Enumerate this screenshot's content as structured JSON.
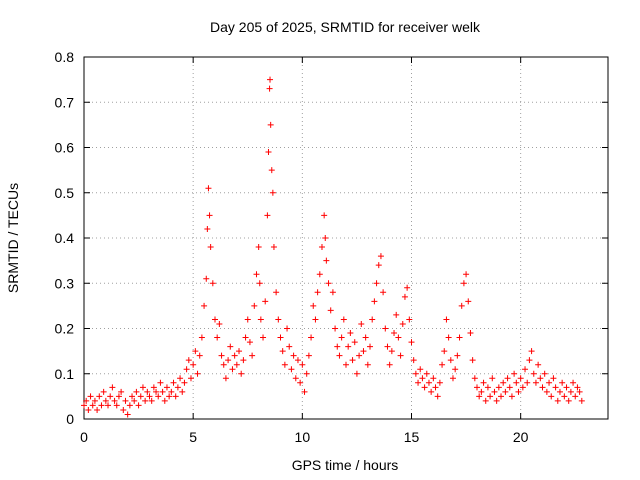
{
  "chart_data": {
    "type": "scatter",
    "title": "Day 205 of 2025, SRMTID for receiver welk",
    "xlabel": "GPS time / hours",
    "ylabel": "SRMTID / TECUs",
    "xlim": [
      0,
      24
    ],
    "ylim": [
      0,
      0.8
    ],
    "xticks": [
      0,
      5,
      10,
      15,
      20
    ],
    "xtick_labels": [
      "0",
      "5",
      "10",
      "15",
      "20"
    ],
    "yticks": [
      0,
      0.1,
      0.2,
      0.3,
      0.4,
      0.5,
      0.6,
      0.7,
      0.8
    ],
    "ytick_labels": [
      "0",
      "0.1",
      "0.2",
      "0.3",
      "0.4",
      "0.5",
      "0.6",
      "0.7",
      "0.8"
    ],
    "grid": true,
    "marker": "+",
    "color": "#ff0000",
    "series": [
      {
        "name": "SRMTID",
        "points": [
          [
            0.0,
            0.03
          ],
          [
            0.1,
            0.04
          ],
          [
            0.2,
            0.02
          ],
          [
            0.3,
            0.05
          ],
          [
            0.4,
            0.03
          ],
          [
            0.5,
            0.04
          ],
          [
            0.6,
            0.02
          ],
          [
            0.7,
            0.05
          ],
          [
            0.8,
            0.03
          ],
          [
            0.9,
            0.06
          ],
          [
            1.0,
            0.04
          ],
          [
            1.1,
            0.03
          ],
          [
            1.2,
            0.05
          ],
          [
            1.3,
            0.07
          ],
          [
            1.4,
            0.04
          ],
          [
            1.5,
            0.03
          ],
          [
            1.6,
            0.05
          ],
          [
            1.7,
            0.06
          ],
          [
            1.8,
            0.02
          ],
          [
            1.9,
            0.04
          ],
          [
            2.0,
            0.01
          ],
          [
            2.1,
            0.03
          ],
          [
            2.2,
            0.05
          ],
          [
            2.3,
            0.04
          ],
          [
            2.4,
            0.06
          ],
          [
            2.5,
            0.03
          ],
          [
            2.6,
            0.05
          ],
          [
            2.7,
            0.07
          ],
          [
            2.8,
            0.04
          ],
          [
            2.9,
            0.06
          ],
          [
            3.0,
            0.05
          ],
          [
            3.1,
            0.04
          ],
          [
            3.2,
            0.07
          ],
          [
            3.3,
            0.06
          ],
          [
            3.4,
            0.05
          ],
          [
            3.5,
            0.08
          ],
          [
            3.6,
            0.06
          ],
          [
            3.7,
            0.04
          ],
          [
            3.8,
            0.07
          ],
          [
            3.9,
            0.05
          ],
          [
            4.0,
            0.06
          ],
          [
            4.1,
            0.08
          ],
          [
            4.2,
            0.05
          ],
          [
            4.3,
            0.07
          ],
          [
            4.4,
            0.09
          ],
          [
            4.5,
            0.06
          ],
          [
            4.6,
            0.08
          ],
          [
            4.7,
            0.11
          ],
          [
            4.8,
            0.13
          ],
          [
            4.9,
            0.09
          ],
          [
            5.0,
            0.12
          ],
          [
            5.1,
            0.15
          ],
          [
            5.2,
            0.1
          ],
          [
            5.3,
            0.14
          ],
          [
            5.4,
            0.18
          ],
          [
            5.5,
            0.25
          ],
          [
            5.6,
            0.31
          ],
          [
            5.65,
            0.42
          ],
          [
            5.7,
            0.51
          ],
          [
            5.75,
            0.45
          ],
          [
            5.8,
            0.38
          ],
          [
            5.9,
            0.3
          ],
          [
            6.0,
            0.22
          ],
          [
            6.1,
            0.18
          ],
          [
            6.2,
            0.21
          ],
          [
            6.3,
            0.14
          ],
          [
            6.4,
            0.12
          ],
          [
            6.5,
            0.09
          ],
          [
            6.6,
            0.13
          ],
          [
            6.7,
            0.16
          ],
          [
            6.8,
            0.11
          ],
          [
            6.9,
            0.14
          ],
          [
            7.0,
            0.12
          ],
          [
            7.1,
            0.15
          ],
          [
            7.2,
            0.1
          ],
          [
            7.3,
            0.13
          ],
          [
            7.4,
            0.18
          ],
          [
            7.5,
            0.22
          ],
          [
            7.6,
            0.17
          ],
          [
            7.7,
            0.14
          ],
          [
            7.8,
            0.25
          ],
          [
            7.9,
            0.32
          ],
          [
            8.0,
            0.38
          ],
          [
            8.05,
            0.3
          ],
          [
            8.1,
            0.22
          ],
          [
            8.2,
            0.18
          ],
          [
            8.3,
            0.26
          ],
          [
            8.4,
            0.45
          ],
          [
            8.45,
            0.59
          ],
          [
            8.5,
            0.73
          ],
          [
            8.52,
            0.75
          ],
          [
            8.55,
            0.65
          ],
          [
            8.6,
            0.55
          ],
          [
            8.65,
            0.5
          ],
          [
            8.7,
            0.38
          ],
          [
            8.8,
            0.28
          ],
          [
            8.9,
            0.22
          ],
          [
            9.0,
            0.18
          ],
          [
            9.1,
            0.15
          ],
          [
            9.2,
            0.12
          ],
          [
            9.3,
            0.2
          ],
          [
            9.4,
            0.16
          ],
          [
            9.5,
            0.11
          ],
          [
            9.6,
            0.14
          ],
          [
            9.7,
            0.09
          ],
          [
            9.8,
            0.13
          ],
          [
            9.9,
            0.08
          ],
          [
            10.0,
            0.12
          ],
          [
            10.1,
            0.06
          ],
          [
            10.2,
            0.1
          ],
          [
            10.3,
            0.14
          ],
          [
            10.4,
            0.18
          ],
          [
            10.5,
            0.25
          ],
          [
            10.6,
            0.22
          ],
          [
            10.7,
            0.28
          ],
          [
            10.8,
            0.32
          ],
          [
            10.9,
            0.38
          ],
          [
            11.0,
            0.45
          ],
          [
            11.05,
            0.4
          ],
          [
            11.1,
            0.35
          ],
          [
            11.2,
            0.3
          ],
          [
            11.3,
            0.24
          ],
          [
            11.4,
            0.28
          ],
          [
            11.5,
            0.2
          ],
          [
            11.6,
            0.16
          ],
          [
            11.7,
            0.14
          ],
          [
            11.8,
            0.18
          ],
          [
            11.9,
            0.22
          ],
          [
            12.0,
            0.12
          ],
          [
            12.1,
            0.16
          ],
          [
            12.2,
            0.19
          ],
          [
            12.3,
            0.13
          ],
          [
            12.4,
            0.17
          ],
          [
            12.5,
            0.1
          ],
          [
            12.6,
            0.14
          ],
          [
            12.7,
            0.21
          ],
          [
            12.8,
            0.15
          ],
          [
            12.9,
            0.18
          ],
          [
            13.0,
            0.12
          ],
          [
            13.1,
            0.16
          ],
          [
            13.2,
            0.22
          ],
          [
            13.3,
            0.26
          ],
          [
            13.4,
            0.3
          ],
          [
            13.5,
            0.34
          ],
          [
            13.6,
            0.36
          ],
          [
            13.7,
            0.28
          ],
          [
            13.8,
            0.2
          ],
          [
            13.9,
            0.16
          ],
          [
            14.0,
            0.12
          ],
          [
            14.1,
            0.15
          ],
          [
            14.2,
            0.19
          ],
          [
            14.3,
            0.23
          ],
          [
            14.4,
            0.18
          ],
          [
            14.5,
            0.14
          ],
          [
            14.6,
            0.21
          ],
          [
            14.7,
            0.27
          ],
          [
            14.8,
            0.29
          ],
          [
            14.9,
            0.22
          ],
          [
            15.0,
            0.17
          ],
          [
            15.1,
            0.13
          ],
          [
            15.2,
            0.1
          ],
          [
            15.3,
            0.08
          ],
          [
            15.4,
            0.11
          ],
          [
            15.5,
            0.09
          ],
          [
            15.6,
            0.07
          ],
          [
            15.7,
            0.1
          ],
          [
            15.8,
            0.08
          ],
          [
            15.9,
            0.06
          ],
          [
            16.0,
            0.09
          ],
          [
            16.1,
            0.07
          ],
          [
            16.2,
            0.05
          ],
          [
            16.3,
            0.08
          ],
          [
            16.4,
            0.12
          ],
          [
            16.5,
            0.15
          ],
          [
            16.6,
            0.22
          ],
          [
            16.7,
            0.18
          ],
          [
            16.8,
            0.13
          ],
          [
            16.9,
            0.09
          ],
          [
            17.0,
            0.11
          ],
          [
            17.1,
            0.14
          ],
          [
            17.2,
            0.18
          ],
          [
            17.3,
            0.25
          ],
          [
            17.4,
            0.3
          ],
          [
            17.5,
            0.32
          ],
          [
            17.6,
            0.26
          ],
          [
            17.7,
            0.19
          ],
          [
            17.8,
            0.13
          ],
          [
            17.9,
            0.09
          ],
          [
            18.0,
            0.07
          ],
          [
            18.1,
            0.05
          ],
          [
            18.2,
            0.06
          ],
          [
            18.3,
            0.08
          ],
          [
            18.4,
            0.04
          ],
          [
            18.5,
            0.07
          ],
          [
            18.6,
            0.05
          ],
          [
            18.7,
            0.09
          ],
          [
            18.8,
            0.06
          ],
          [
            18.9,
            0.04
          ],
          [
            19.0,
            0.07
          ],
          [
            19.1,
            0.05
          ],
          [
            19.2,
            0.08
          ],
          [
            19.3,
            0.06
          ],
          [
            19.4,
            0.09
          ],
          [
            19.5,
            0.07
          ],
          [
            19.6,
            0.05
          ],
          [
            19.7,
            0.1
          ],
          [
            19.8,
            0.08
          ],
          [
            19.9,
            0.06
          ],
          [
            20.0,
            0.09
          ],
          [
            20.1,
            0.07
          ],
          [
            20.2,
            0.11
          ],
          [
            20.3,
            0.08
          ],
          [
            20.4,
            0.13
          ],
          [
            20.5,
            0.15
          ],
          [
            20.6,
            0.1
          ],
          [
            20.7,
            0.08
          ],
          [
            20.8,
            0.12
          ],
          [
            20.9,
            0.09
          ],
          [
            21.0,
            0.07
          ],
          [
            21.1,
            0.1
          ],
          [
            21.2,
            0.06
          ],
          [
            21.3,
            0.08
          ],
          [
            21.4,
            0.05
          ],
          [
            21.5,
            0.09
          ],
          [
            21.6,
            0.07
          ],
          [
            21.7,
            0.04
          ],
          [
            21.8,
            0.06
          ],
          [
            21.9,
            0.08
          ],
          [
            22.0,
            0.05
          ],
          [
            22.1,
            0.07
          ],
          [
            22.2,
            0.04
          ],
          [
            22.3,
            0.06
          ],
          [
            22.4,
            0.08
          ],
          [
            22.5,
            0.05
          ],
          [
            22.6,
            0.07
          ],
          [
            22.7,
            0.06
          ],
          [
            22.8,
            0.04
          ]
        ]
      }
    ]
  }
}
